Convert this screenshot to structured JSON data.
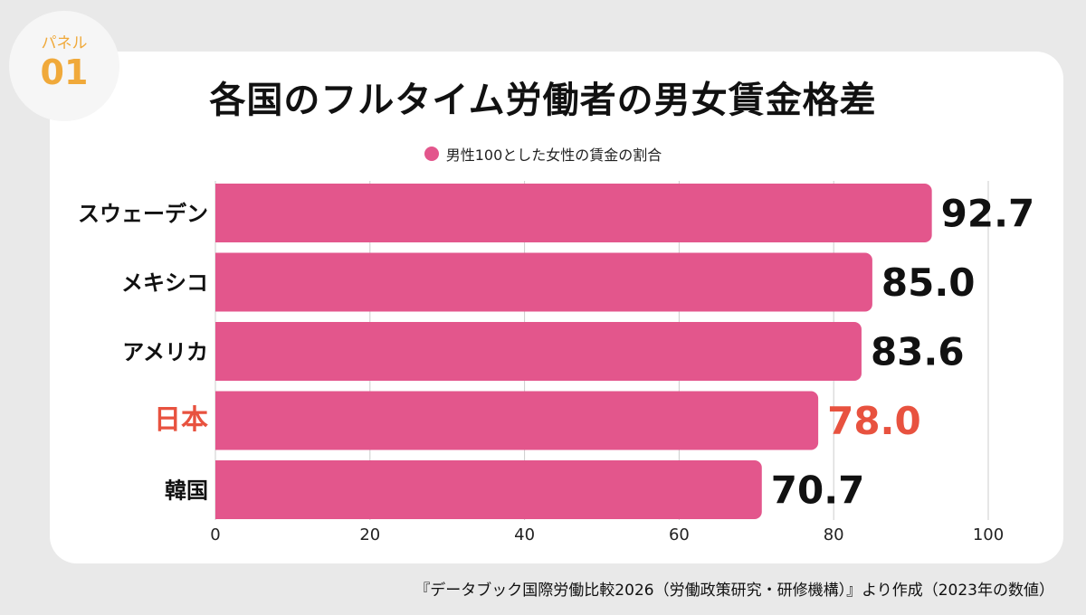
{
  "badge": {
    "label": "パネル",
    "number": "01"
  },
  "source": "『データブック国際労働比較2026（労働政策研究・研修機構）』より作成（2023年の数値）",
  "chart_data": {
    "type": "bar",
    "orientation": "horizontal",
    "title": "各国のフルタイム労働者の男女賃金格差",
    "legend": "男性100とした女性の賃金の割合",
    "categories": [
      "スウェーデン",
      "メキシコ",
      "アメリカ",
      "日本",
      "韓国"
    ],
    "series": [
      {
        "name": "男性100とした女性の賃金の割合",
        "values": [
          92.7,
          85.0,
          83.6,
          78.0,
          70.7
        ]
      }
    ],
    "value_labels": [
      "92.7",
      "85.0",
      "83.6",
      "78.0",
      "70.7"
    ],
    "highlight": "日本",
    "xlim": [
      0,
      100
    ],
    "xticks": [
      0,
      20,
      40,
      60,
      80,
      100
    ],
    "grid": true,
    "colors": {
      "bar": "#e3568c",
      "highlight_text": "#e8523f",
      "text": "#111111",
      "grid": "#cccccc"
    }
  }
}
